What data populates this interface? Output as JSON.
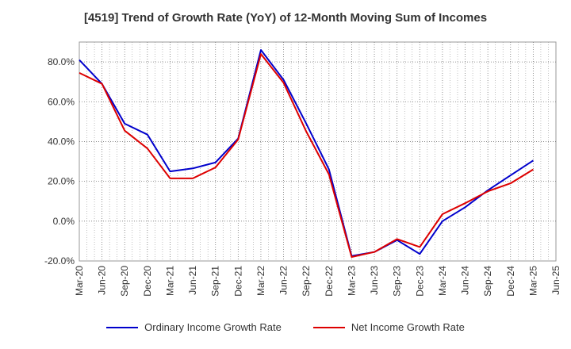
{
  "chart_data": {
    "type": "line",
    "title": "[4519]  Trend of Growth Rate (YoY) of 12-Month Moving Sum of Incomes",
    "xlabel": "",
    "ylabel": "",
    "x_ticks": [
      "Mar-20",
      "Jun-20",
      "Sep-20",
      "Dec-20",
      "Mar-21",
      "Jun-21",
      "Sep-21",
      "Dec-21",
      "Mar-22",
      "Jun-22",
      "Sep-22",
      "Dec-22",
      "Mar-23",
      "Jun-23",
      "Sep-23",
      "Dec-23",
      "Mar-24",
      "Jun-24",
      "Sep-24",
      "Dec-24",
      "Mar-25",
      "Jun-25"
    ],
    "y_ticks": [
      "80.0%",
      "60.0%",
      "40.0%",
      "20.0%",
      "0.0%",
      "-20.0%"
    ],
    "ylim": [
      -20,
      90
    ],
    "grid": true,
    "legend_position": "bottom",
    "series": [
      {
        "name": "Ordinary Income Growth Rate",
        "color": "#0000cc",
        "values": [
          81,
          69,
          49,
          43.5,
          25,
          26.5,
          29.5,
          41.5,
          86,
          71,
          49,
          26,
          -17.5,
          -15.5,
          -9.5,
          -16.5,
          0,
          7,
          15.5,
          23,
          30.5
        ]
      },
      {
        "name": "Net Income Growth Rate",
        "color": "#dd0000",
        "values": [
          74.5,
          69,
          45.5,
          36.5,
          21.5,
          21.5,
          27,
          41,
          84,
          69.5,
          45,
          23.5,
          -18,
          -15.5,
          -9,
          -13,
          3.5,
          9,
          15,
          19,
          26
        ]
      }
    ]
  }
}
